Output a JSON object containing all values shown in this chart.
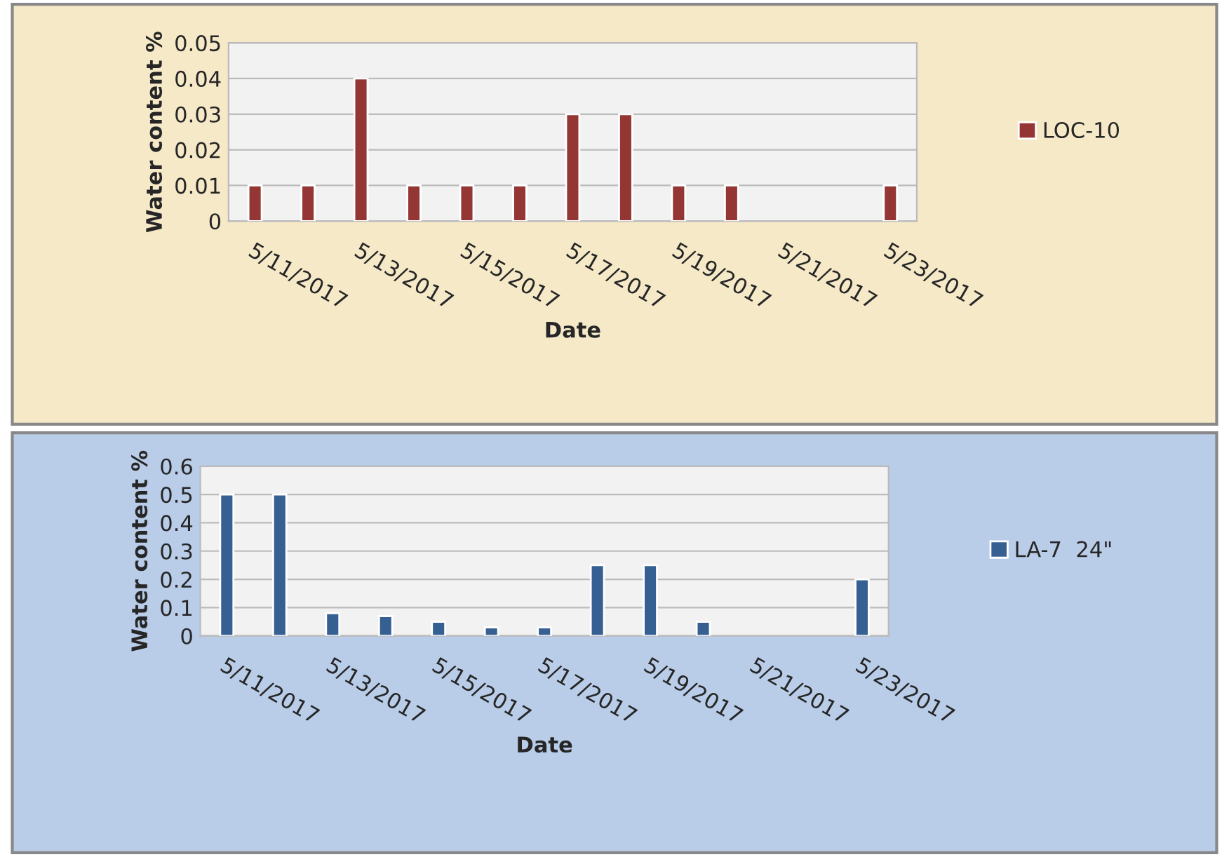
{
  "chart_data": [
    {
      "type": "bar",
      "xlabel": "Date",
      "ylabel": "Water content %",
      "categories": [
        "5/11/2017",
        null,
        "5/13/2017",
        null,
        "5/15/2017",
        null,
        "5/17/2017",
        null,
        "5/19/2017",
        null,
        "5/21/2017",
        null,
        "5/23/2017"
      ],
      "series": [
        {
          "name": "LOC-10",
          "color": "#943634",
          "values": [
            0.01,
            0.01,
            0.04,
            0.01,
            0.01,
            0.01,
            0.03,
            0.03,
            0.01,
            0.01,
            null,
            null,
            0.01
          ]
        }
      ],
      "ylim": [
        0,
        0.05
      ],
      "yticks": [
        0,
        0.01,
        0.02,
        0.03,
        0.04,
        0.05
      ],
      "grid": "y",
      "legend": "right"
    },
    {
      "type": "bar",
      "xlabel": "Date",
      "ylabel": "Water content %",
      "categories": [
        "5/11/2017",
        null,
        "5/13/2017",
        null,
        "5/15/2017",
        null,
        "5/17/2017",
        null,
        "5/19/2017",
        null,
        "5/21/2017",
        null,
        "5/23/2017"
      ],
      "series": [
        {
          "name": "LA-7  24\"",
          "color": "#366092",
          "values": [
            0.5,
            0.5,
            0.08,
            0.07,
            0.05,
            0.03,
            0.03,
            0.25,
            0.25,
            0.05,
            null,
            null,
            0.2
          ]
        }
      ],
      "ylim": [
        0,
        0.6
      ],
      "yticks": [
        0,
        0.1,
        0.2,
        0.3,
        0.4,
        0.5,
        0.6
      ],
      "grid": "y",
      "legend": "right"
    }
  ]
}
